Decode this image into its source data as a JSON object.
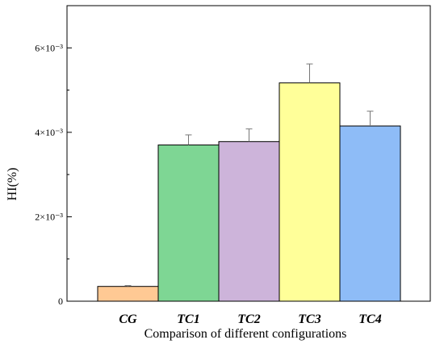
{
  "chart_data": {
    "type": "bar",
    "title": "",
    "xlabel": "Comparison of different configurations",
    "ylabel": "HI(%)",
    "categories": [
      "CG",
      "TC1",
      "TC2",
      "TC3",
      "TC4"
    ],
    "values": [
      0.00035,
      0.0037,
      0.00378,
      0.00517,
      0.00415
    ],
    "errors": [
      2e-05,
      0.00024,
      0.0003,
      0.00045,
      0.00035
    ],
    "colors": [
      "#FFC994",
      "#7ED694",
      "#CDB4DA",
      "#FFFF99",
      "#8EBCF7"
    ],
    "ylim": [
      0,
      0.007
    ],
    "yticks": [
      {
        "value": 0,
        "label": "0"
      },
      {
        "value": 0.002,
        "label": "2×10⁻³"
      },
      {
        "value": 0.004,
        "label": "4×10⁻³"
      },
      {
        "value": 0.006,
        "label": "6×10⁻³"
      }
    ],
    "grid": false,
    "legend": "none"
  }
}
